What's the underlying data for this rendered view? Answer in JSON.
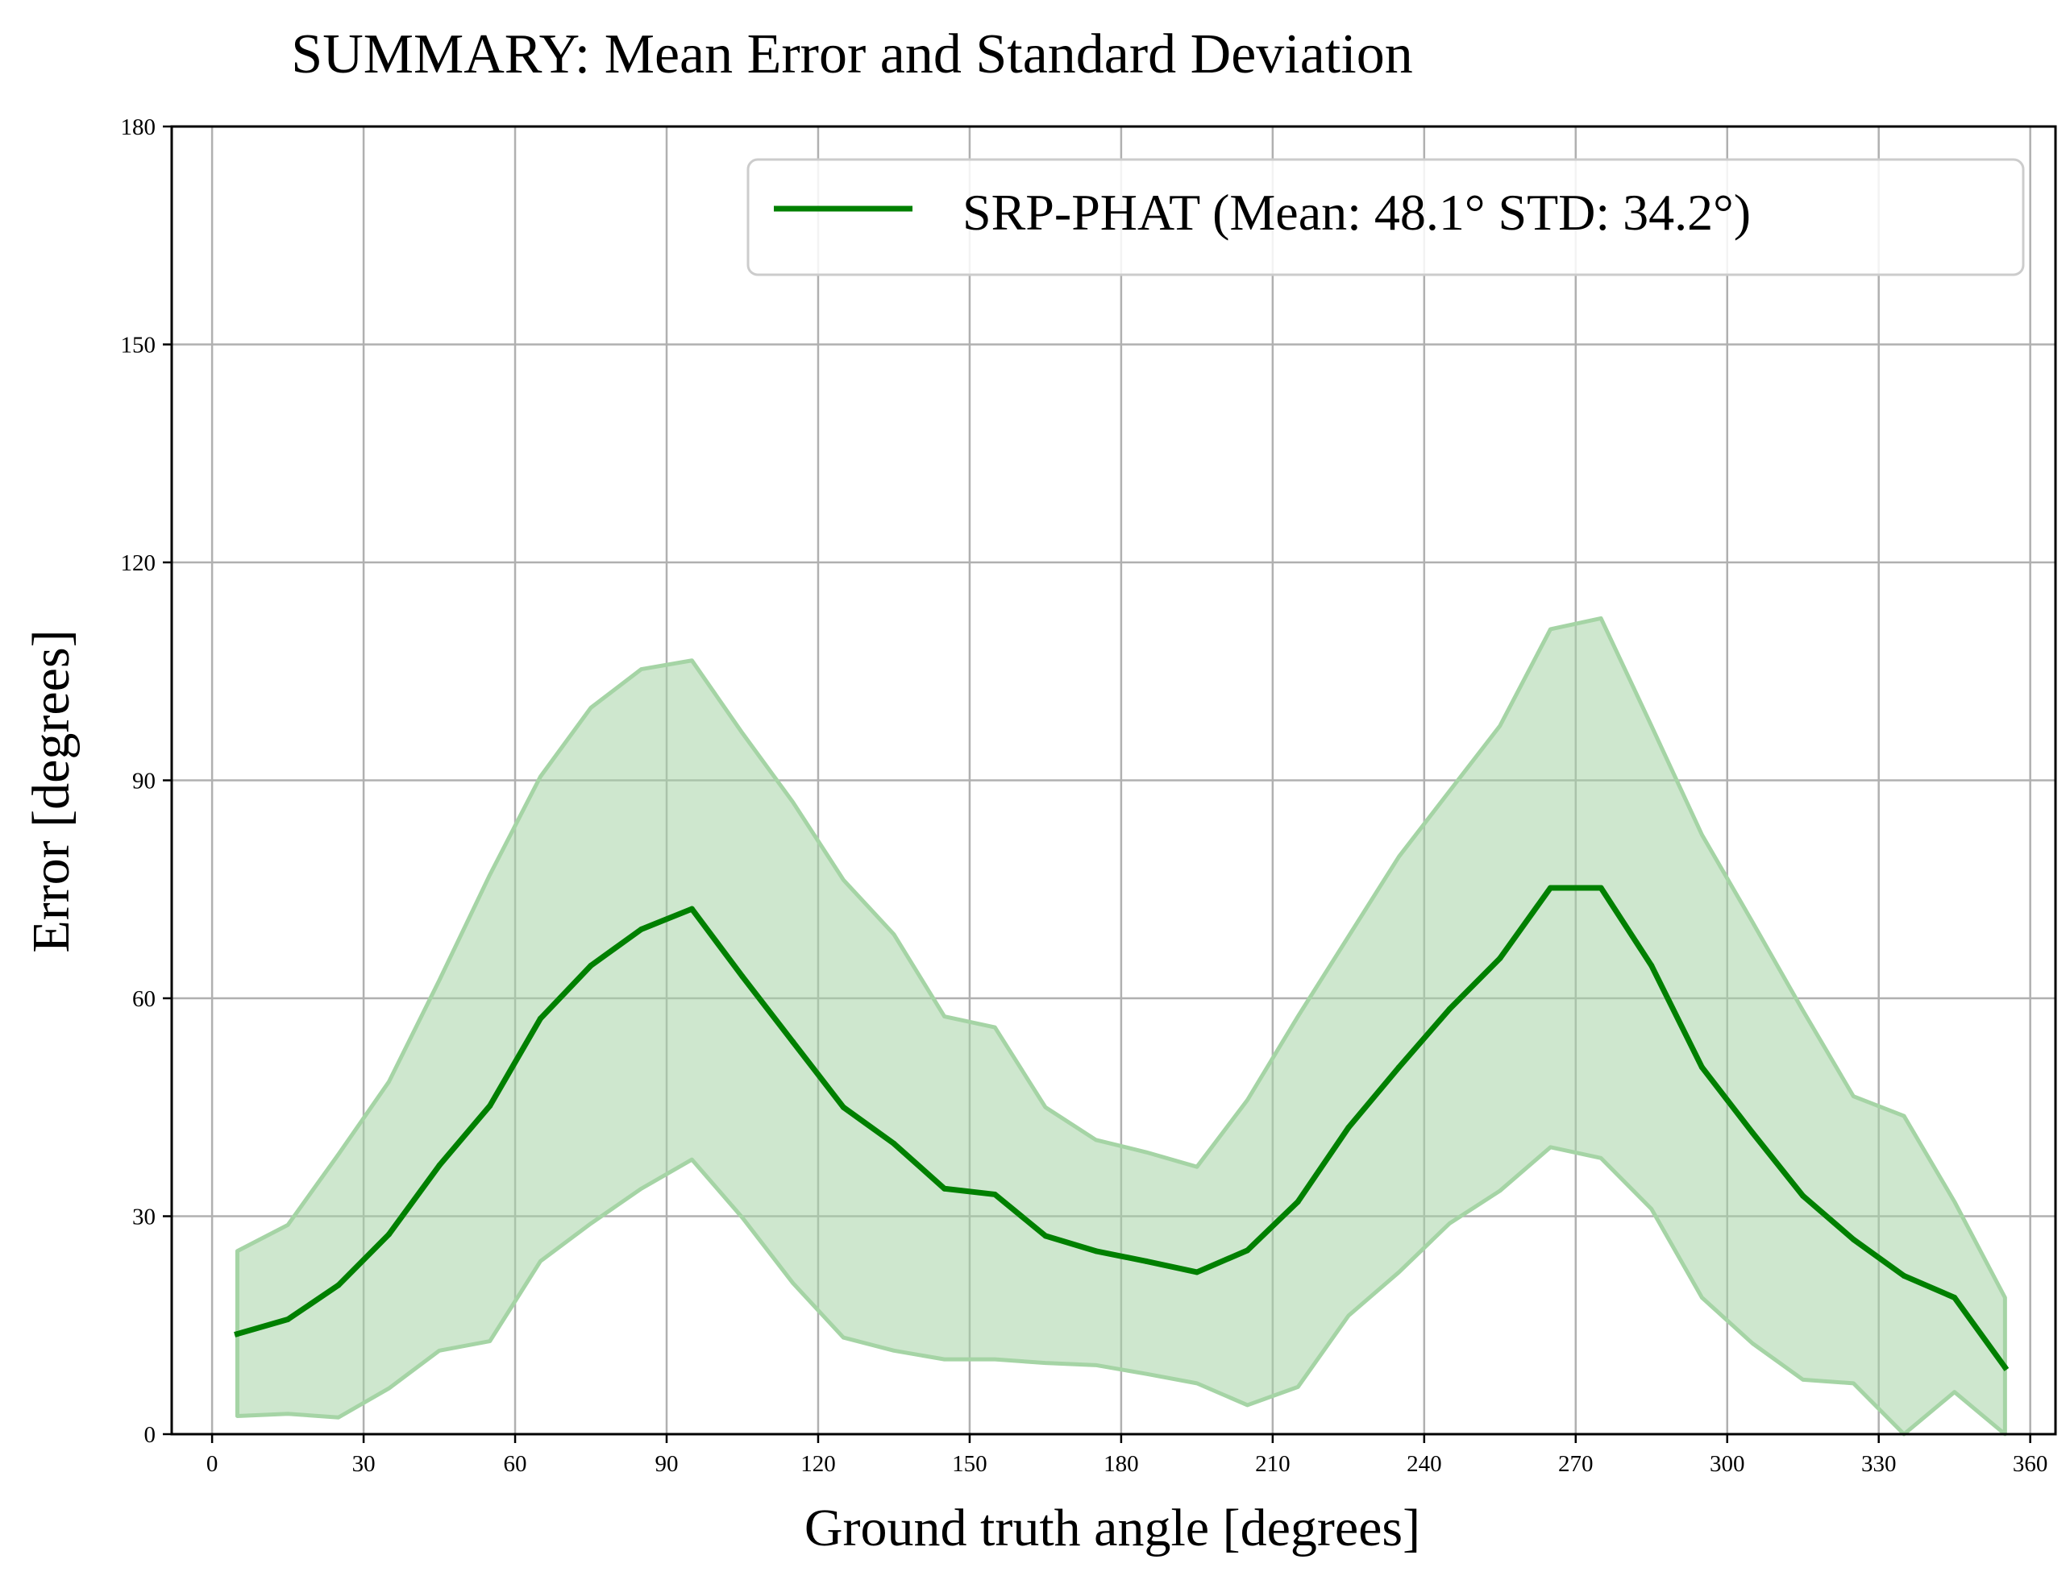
{
  "chart_data": {
    "type": "line",
    "title": "SUMMARY: Mean Error and Standard Deviation",
    "xlabel": "Ground truth angle [degrees]",
    "ylabel": "Error [degrees]",
    "xlim": [
      -8,
      365
    ],
    "ylim": [
      0,
      180
    ],
    "x_ticks": [
      0,
      30,
      60,
      90,
      120,
      150,
      180,
      210,
      240,
      270,
      300,
      330,
      360
    ],
    "y_ticks": [
      0,
      30,
      60,
      90,
      120,
      150,
      180
    ],
    "grid": true,
    "legend_position": "top-right",
    "x": [
      5,
      15,
      25,
      35,
      45,
      55,
      65,
      75,
      85,
      95,
      105,
      115,
      125,
      135,
      145,
      155,
      165,
      175,
      185,
      195,
      205,
      215,
      225,
      235,
      245,
      255,
      265,
      275,
      285,
      295,
      305,
      315,
      325,
      335,
      345,
      355
    ],
    "series": [
      {
        "name": "SRP-PHAT (Mean: 48.1° STD: 34.2°)",
        "color": "#008000",
        "values": [
          13.8,
          15.8,
          20.5,
          27.5,
          37.0,
          45.2,
          57.2,
          64.5,
          69.5,
          72.3,
          63.0,
          54.0,
          45.0,
          40.0,
          33.8,
          33.0,
          27.3,
          25.2,
          23.8,
          22.3,
          25.3,
          32.0,
          42.2,
          50.5,
          58.5,
          65.5,
          75.2,
          75.2,
          64.5,
          50.5,
          41.5,
          32.8,
          26.8,
          21.8,
          18.8,
          9.2
        ],
        "band_upper": [
          25.2,
          28.8,
          38.5,
          48.5,
          62.5,
          77.0,
          90.5,
          100.0,
          105.3,
          106.5,
          96.5,
          87.0,
          76.3,
          68.8,
          57.5,
          56.0,
          45.0,
          40.5,
          38.8,
          36.8,
          46.0,
          57.5,
          68.5,
          79.5,
          88.5,
          97.5,
          110.8,
          112.3,
          97.5,
          82.5,
          70.5,
          58.3,
          46.5,
          43.8,
          32.0,
          18.8
        ],
        "band_lower": [
          2.5,
          2.8,
          2.3,
          6.3,
          11.5,
          12.8,
          23.8,
          29.0,
          33.8,
          37.8,
          29.8,
          20.8,
          13.3,
          11.5,
          10.3,
          10.3,
          9.8,
          9.5,
          8.3,
          7.0,
          4.0,
          6.5,
          16.3,
          22.3,
          29.0,
          33.5,
          39.5,
          38.0,
          31.0,
          18.8,
          12.5,
          7.5,
          7.0,
          0.0,
          5.8,
          0.0
        ],
        "band_color": "#a5d4a5"
      }
    ]
  }
}
